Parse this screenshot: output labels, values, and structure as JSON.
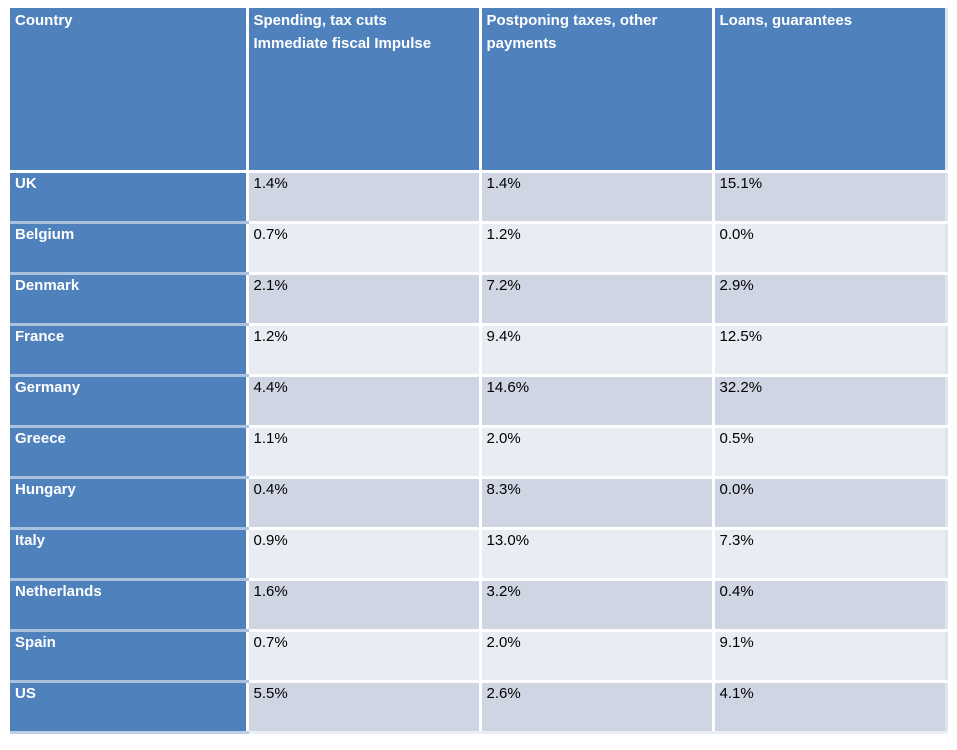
{
  "colors": {
    "header_blue": "#4f81bd",
    "band_dark": "#cfd5e3",
    "band_light": "#e9ecf3",
    "blue_column_divider": "#a9c2de",
    "cell_border": "#ffffff",
    "header_text": "#ffffff",
    "value_text": "#000000"
  },
  "chart_data": {
    "type": "table",
    "columns": [
      "Country",
      "Spending, tax cuts\nImmediate fiscal Impulse",
      "Postponing taxes, other\npayments",
      "Loans, guarantees"
    ],
    "rows": [
      [
        "UK",
        "1.4%",
        "1.4%",
        "15.1%"
      ],
      [
        "Belgium",
        "0.7%",
        "1.2%",
        "0.0%"
      ],
      [
        "Denmark",
        "2.1%",
        "7.2%",
        "2.9%"
      ],
      [
        "France",
        "1.2%",
        "9.4%",
        "12.5%"
      ],
      [
        "Germany",
        "4.4%",
        "14.6%",
        "32.2%"
      ],
      [
        "Greece",
        "1.1%",
        "2.0%",
        "0.5%"
      ],
      [
        "Hungary",
        "0.4%",
        "8.3%",
        "0.0%"
      ],
      [
        "Italy",
        "0.9%",
        "13.0%",
        "7.3%"
      ],
      [
        "Netherlands",
        "1.6%",
        "3.2%",
        "0.4%"
      ],
      [
        "Spain",
        "0.7%",
        "2.0%",
        "9.1%"
      ],
      [
        "US",
        "5.5%",
        "2.6%",
        "4.1%"
      ]
    ]
  }
}
